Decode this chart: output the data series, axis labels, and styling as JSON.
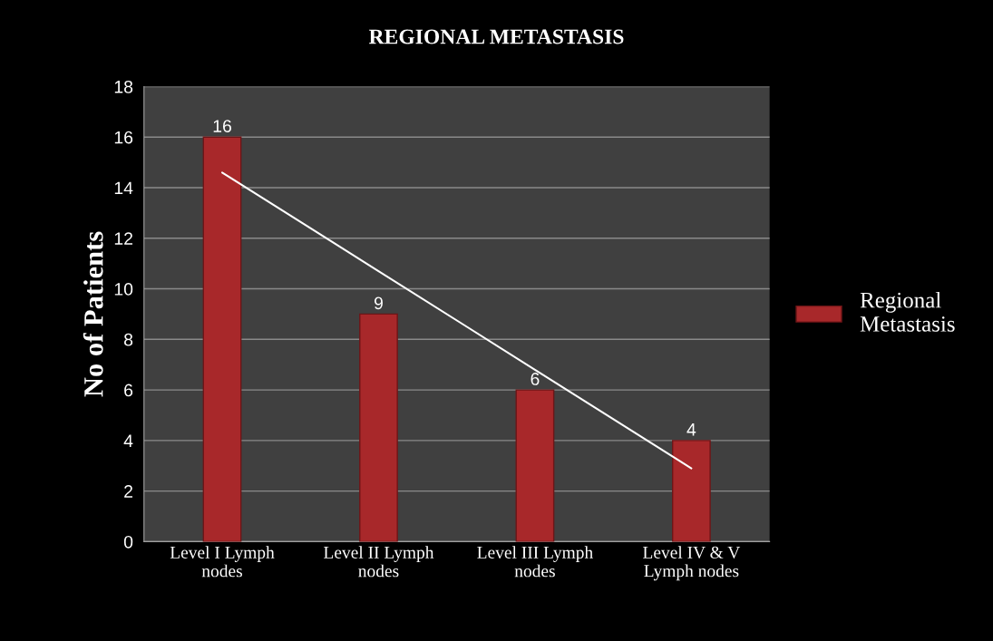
{
  "chart_data": {
    "type": "bar",
    "title": "REGIONAL METASTASIS",
    "ylabel": "No of Patients",
    "categories": [
      "Level I Lymph\nnodes",
      "Level II Lymph\nnodes",
      "Level III Lymph\nnodes",
      "Level IV & V\nLymph nodes"
    ],
    "series": [
      {
        "name": "Regional\nMetastasis",
        "color": "#a8282a",
        "values": [
          16,
          9,
          6,
          4
        ],
        "value_labels": [
          "16",
          "9",
          "6",
          "4"
        ]
      },
      {
        "type": "line",
        "color": "#ffffff",
        "values": [
          14.6,
          10.7,
          6.8,
          2.9
        ],
        "marker": "none",
        "line_style": "solid"
      }
    ],
    "ylim": [
      0,
      18
    ],
    "yticks": [
      0,
      2,
      4,
      6,
      8,
      10,
      12,
      14,
      16,
      18
    ],
    "grid": "y",
    "legend": "right"
  }
}
